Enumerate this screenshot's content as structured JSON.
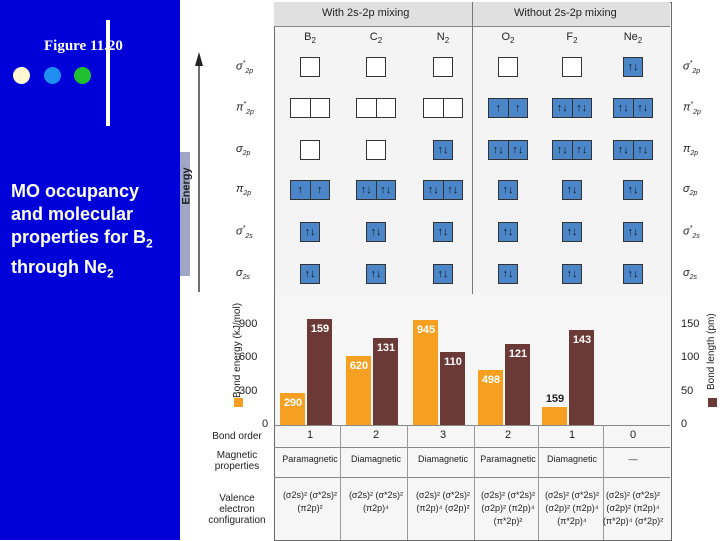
{
  "slide": {
    "figure_title": "Figure 11.20",
    "caption_line1": "MO occupancy",
    "caption_line2": "and molecular",
    "caption_line3": "properties for B",
    "caption_line3_sub": "2",
    "caption_line4": "through Ne",
    "caption_line4_sub": "2",
    "dots": [
      "#fff8d0",
      "#1e8ff0",
      "#20c030"
    ]
  },
  "figure": {
    "energy_label": "Energy",
    "group_with": "With 2s-2p mixing",
    "group_without": "Without 2s-2p mixing",
    "molecules": [
      {
        "name": "B",
        "sub": "2"
      },
      {
        "name": "C",
        "sub": "2"
      },
      {
        "name": "N",
        "sub": "2"
      },
      {
        "name": "O",
        "sub": "2"
      },
      {
        "name": "F",
        "sub": "2"
      },
      {
        "name": "Ne",
        "sub": "2"
      }
    ],
    "left_orbitals": [
      {
        "base": "σ",
        "sup": "*",
        "sub": "2p"
      },
      {
        "base": "π",
        "sup": "*",
        "sub": "2p"
      },
      {
        "base": "σ",
        "sup": "",
        "sub": "2p"
      },
      {
        "base": "π",
        "sup": "",
        "sub": "2p"
      },
      {
        "base": "σ",
        "sup": "*",
        "sub": "2s"
      },
      {
        "base": "σ",
        "sup": "",
        "sub": "2s"
      }
    ],
    "right_orbitals": [
      {
        "base": "σ",
        "sup": "*",
        "sub": "2p"
      },
      {
        "base": "π",
        "sup": "*",
        "sub": "2p"
      },
      {
        "base": "π",
        "sup": "",
        "sub": "2p"
      },
      {
        "base": "σ",
        "sup": "",
        "sub": "2p"
      },
      {
        "base": "σ",
        "sup": "*",
        "sub": "2s"
      },
      {
        "base": "σ",
        "sup": "",
        "sub": "2s"
      }
    ],
    "occupancy": [
      [
        [
          ""
        ],
        [
          ""
        ],
        [
          ""
        ],
        [
          ""
        ],
        [
          ""
        ],
        [
          "↑↓"
        ]
      ],
      [
        [
          "",
          ""
        ],
        [
          "",
          ""
        ],
        [
          "",
          ""
        ],
        [
          "↑",
          "↑"
        ],
        [
          "↑↓",
          "↑↓"
        ],
        [
          "↑↓",
          "↑↓"
        ]
      ],
      [
        [
          ""
        ],
        [
          ""
        ],
        [
          "↑↓"
        ],
        [
          "↑↓",
          "↑↓"
        ],
        [
          "↑↓",
          "↑↓"
        ],
        [
          "↑↓",
          "↑↓"
        ]
      ],
      [
        [
          "↑",
          "↑"
        ],
        [
          "↑↓",
          "↑↓"
        ],
        [
          "↑↓",
          "↑↓"
        ],
        [
          "↑↓"
        ],
        [
          "↑↓"
        ],
        [
          "↑↓"
        ]
      ],
      [
        [
          "↑↓"
        ],
        [
          "↑↓"
        ],
        [
          "↑↓"
        ],
        [
          "↑↓"
        ],
        [
          "↑↓"
        ],
        [
          "↑↓"
        ]
      ],
      [
        [
          "↑↓"
        ],
        [
          "↑↓"
        ],
        [
          "↑↓"
        ],
        [
          "↑↓"
        ],
        [
          "↑↓"
        ],
        [
          "↑↓"
        ]
      ]
    ],
    "left_axis_label": "Bond energy (kJ/mol)",
    "right_axis_label": "Bond length (pm)",
    "left_ticks": [
      "900",
      "600",
      "300",
      "0"
    ],
    "right_ticks": [
      "150",
      "100",
      "50",
      "0"
    ],
    "row_bond_order": "Bond order",
    "row_magnetic_1": "Magnetic",
    "row_magnetic_2": "properties",
    "row_config_1": "Valence",
    "row_config_2": "electron",
    "row_config_3": "configuration",
    "bond_orders": [
      "1",
      "2",
      "3",
      "2",
      "1",
      "0"
    ],
    "magnetism": [
      "Paramagnetic",
      "Diamagnetic",
      "Diamagnetic",
      "Paramagnetic",
      "Diamagnetic",
      "—"
    ],
    "configs": [
      [
        "(σ2s)² (σ*2s)²",
        "(π2p)²",
        ""
      ],
      [
        "(σ2s)² (σ*2s)²",
        "(π2p)⁴",
        ""
      ],
      [
        "(σ2s)² (σ*2s)²",
        "(π2p)⁴ (σ2p)²",
        ""
      ],
      [
        "(σ2s)² (σ*2s)²",
        "(σ2p)² (π2p)⁴",
        "(π*2p)²"
      ],
      [
        "(σ2s)² (σ*2s)²",
        "(σ2p)² (π2p)⁴",
        "(π*2p)⁴"
      ],
      [
        "(σ2s)² (σ*2s)²",
        "(σ2p)² (π2p)⁴",
        "(π*2p)⁴ (σ*2p)²"
      ]
    ],
    "colors": {
      "bond_energy": "#f5a020",
      "bond_length": "#6b3a36",
      "filled_box": "#4a86c8"
    }
  },
  "chart_data": {
    "type": "bar",
    "categories": [
      "B2",
      "C2",
      "N2",
      "O2",
      "F2",
      "Ne2"
    ],
    "series": [
      {
        "name": "Bond energy (kJ/mol)",
        "values": [
          290,
          620,
          945,
          498,
          159,
          null
        ]
      },
      {
        "name": "Bond length (pm)",
        "values": [
          159,
          131,
          110,
          121,
          143,
          null
        ]
      }
    ],
    "left_ylabel": "Bond energy (kJ/mol)",
    "right_ylabel": "Bond length (pm)",
    "left_ylim": [
      0,
      900
    ],
    "right_ylim": [
      0,
      150
    ]
  }
}
